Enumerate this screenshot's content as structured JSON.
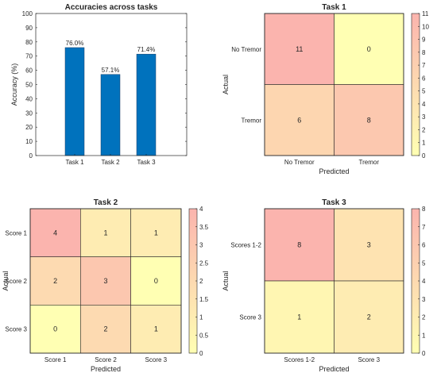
{
  "chart_data": [
    {
      "type": "bar",
      "title": "Accuracies across tasks",
      "xlabel": "",
      "ylabel": "Accuracy (%)",
      "categories": [
        "Task 1",
        "Task 2",
        "Task 3"
      ],
      "values": [
        76.0,
        57.1,
        71.4
      ],
      "data_labels": [
        "76.0%",
        "57.1%",
        "71.4%"
      ],
      "ylim": [
        0,
        100
      ],
      "yticks": [
        0,
        10,
        20,
        30,
        40,
        50,
        60,
        70,
        80,
        90,
        100
      ],
      "bar_color": "#0072BD",
      "grid": false
    },
    {
      "type": "heatmap",
      "title": "Task 1",
      "xlabel": "Predicted",
      "ylabel": "Actual",
      "x_labels": [
        "No Tremor",
        "Tremor"
      ],
      "y_labels": [
        "No Tremor",
        "Tremor"
      ],
      "matrix": [
        [
          11,
          0
        ],
        [
          6,
          8
        ]
      ],
      "colorbar_range": [
        0,
        11
      ],
      "colorbar_ticks": [
        0,
        1,
        2,
        3,
        4,
        5,
        6,
        7,
        8,
        9,
        10,
        11
      ],
      "colormap": [
        "#FFFFB3",
        "#FBB4AE"
      ]
    },
    {
      "type": "heatmap",
      "title": "Task 2",
      "xlabel": "Predicted",
      "ylabel": "Actual",
      "x_labels": [
        "Score 1",
        "Score 2",
        "Score 3"
      ],
      "y_labels": [
        "Score 1",
        "Score 2",
        "Score 3"
      ],
      "matrix": [
        [
          4,
          1,
          1
        ],
        [
          2,
          3,
          0
        ],
        [
          0,
          2,
          1
        ]
      ],
      "colorbar_range": [
        0,
        4
      ],
      "colorbar_ticks": [
        0,
        0.5,
        1,
        1.5,
        2,
        2.5,
        3,
        3.5,
        4
      ],
      "colormap": [
        "#FFFFB3",
        "#FBB4AE"
      ]
    },
    {
      "type": "heatmap",
      "title": "Task 3",
      "xlabel": "Predicted",
      "ylabel": "Actual",
      "x_labels": [
        "Scores 1-2",
        "Score 3"
      ],
      "y_labels": [
        "Scores 1-2",
        "Score 3"
      ],
      "matrix": [
        [
          8,
          3
        ],
        [
          1,
          2
        ]
      ],
      "colorbar_range": [
        0,
        8
      ],
      "colorbar_ticks": [
        0,
        1,
        2,
        3,
        4,
        5,
        6,
        7,
        8
      ],
      "colormap": [
        "#FFFFB3",
        "#FBB4AE"
      ]
    }
  ]
}
